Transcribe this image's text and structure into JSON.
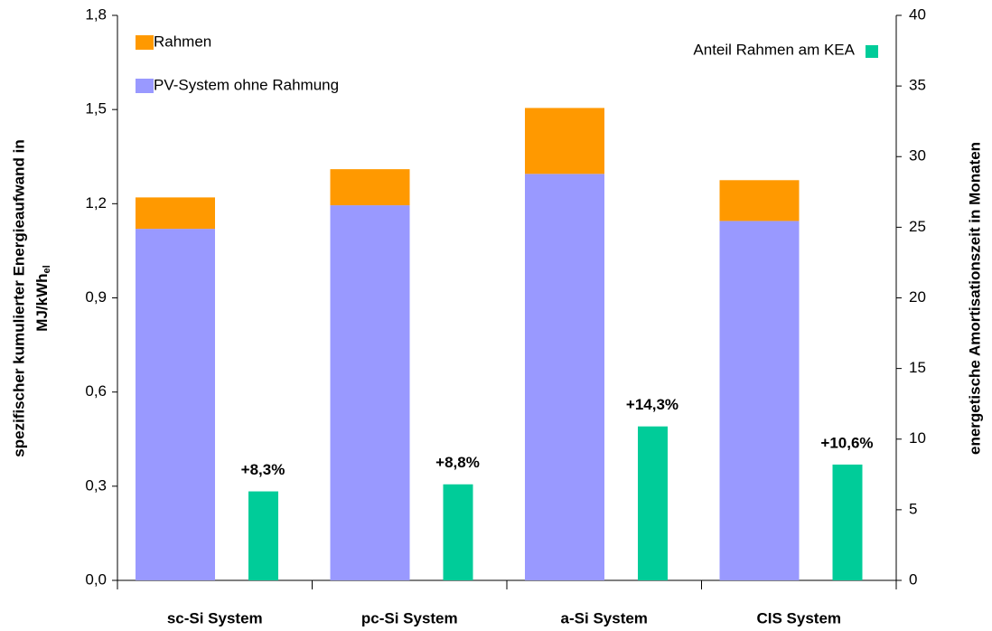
{
  "chart_data": {
    "type": "bar",
    "categories": [
      "sc-Si System",
      "pc-Si System",
      "a-Si System",
      "CIS System"
    ],
    "series": [
      {
        "name": "PV-System ohne Rahmung",
        "color": "#9999ff",
        "values": [
          1.12,
          1.195,
          1.295,
          1.145
        ]
      },
      {
        "name": "Rahmen",
        "color": "#ff9900",
        "values": [
          0.1,
          0.115,
          0.21,
          0.13
        ]
      },
      {
        "name": "Anteil Rahmen am KEA",
        "color": "#00cc99",
        "values": [
          6.3,
          6.8,
          10.9,
          8.2
        ],
        "axis": "y2"
      }
    ],
    "annotations": [
      "+8,3%",
      "+8,8%",
      "+14,3%",
      "+10,6%"
    ],
    "ylabel": [
      "spezifischer kumulierter Energieaufwand in",
      "MJ/kWh",
      "el"
    ],
    "y2label": "energetische Amortisationszeit in Monaten",
    "ylim": [
      0,
      1.8
    ],
    "yticks": [
      {
        "value": 0,
        "label": "0,0"
      },
      {
        "value": 0.3,
        "label": "0,3"
      },
      {
        "value": 0.6,
        "label": "0,6"
      },
      {
        "value": 0.9,
        "label": "0,9"
      },
      {
        "value": 1.2,
        "label": "1,2"
      },
      {
        "value": 1.5,
        "label": "1,5"
      },
      {
        "value": 1.8,
        "label": "1,8"
      }
    ],
    "y2lim": [
      0,
      40
    ],
    "y2ticks": [
      0,
      5,
      10,
      15,
      20,
      25,
      30,
      35,
      40
    ]
  }
}
